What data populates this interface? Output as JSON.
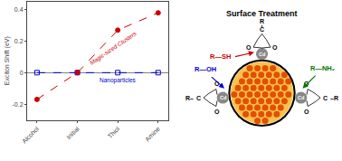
{
  "chart_data": [
    {
      "type": "line",
      "categories": [
        "Alcohol",
        "Initial",
        "Thiol",
        "Amine"
      ],
      "series": [
        {
          "name": "Nanoparticles",
          "color": "#0000cc",
          "marker": "square-open",
          "line_style": "dashed",
          "values": [
            0.0,
            0.0,
            0.0,
            0.0
          ]
        },
        {
          "name": "Magic-sized Clusters",
          "color": "#cc0000",
          "marker": "circle",
          "line_style": "dashed",
          "values": [
            -0.17,
            0.0,
            0.27,
            0.38
          ]
        }
      ],
      "ylabel": "Exciton Shift (eV)",
      "ylim": [
        -0.3,
        0.45
      ],
      "yticks": [
        -0.2,
        0,
        0.2,
        0.4
      ],
      "grid": false
    },
    {
      "type": "diagram",
      "title": "Surface Treatment",
      "colors": [
        "#ffc04d",
        "#e05000",
        "#888888"
      ],
      "annotations": [
        {
          "text": "Cd",
          "color": "#ffffff"
        },
        {
          "text": "Cd",
          "color": "#ffffff"
        },
        {
          "text": "Cd",
          "color": "#ffffff"
        },
        {
          "text": "R"
        },
        {
          "text": "C"
        },
        {
          "text": "O"
        },
        {
          "text": "O"
        },
        {
          "text": "C"
        },
        {
          "text": "O"
        },
        {
          "text": "O"
        },
        {
          "text": "R–"
        },
        {
          "text": "C"
        },
        {
          "text": "O"
        },
        {
          "text": "O"
        },
        {
          "text": "–R"
        },
        {
          "text": "R—SH",
          "color": "#cc0000"
        },
        {
          "text": "R—OH",
          "color": "#0000cc"
        },
        {
          "text": "R—NH₂",
          "color": "#007700"
        }
      ]
    }
  ]
}
